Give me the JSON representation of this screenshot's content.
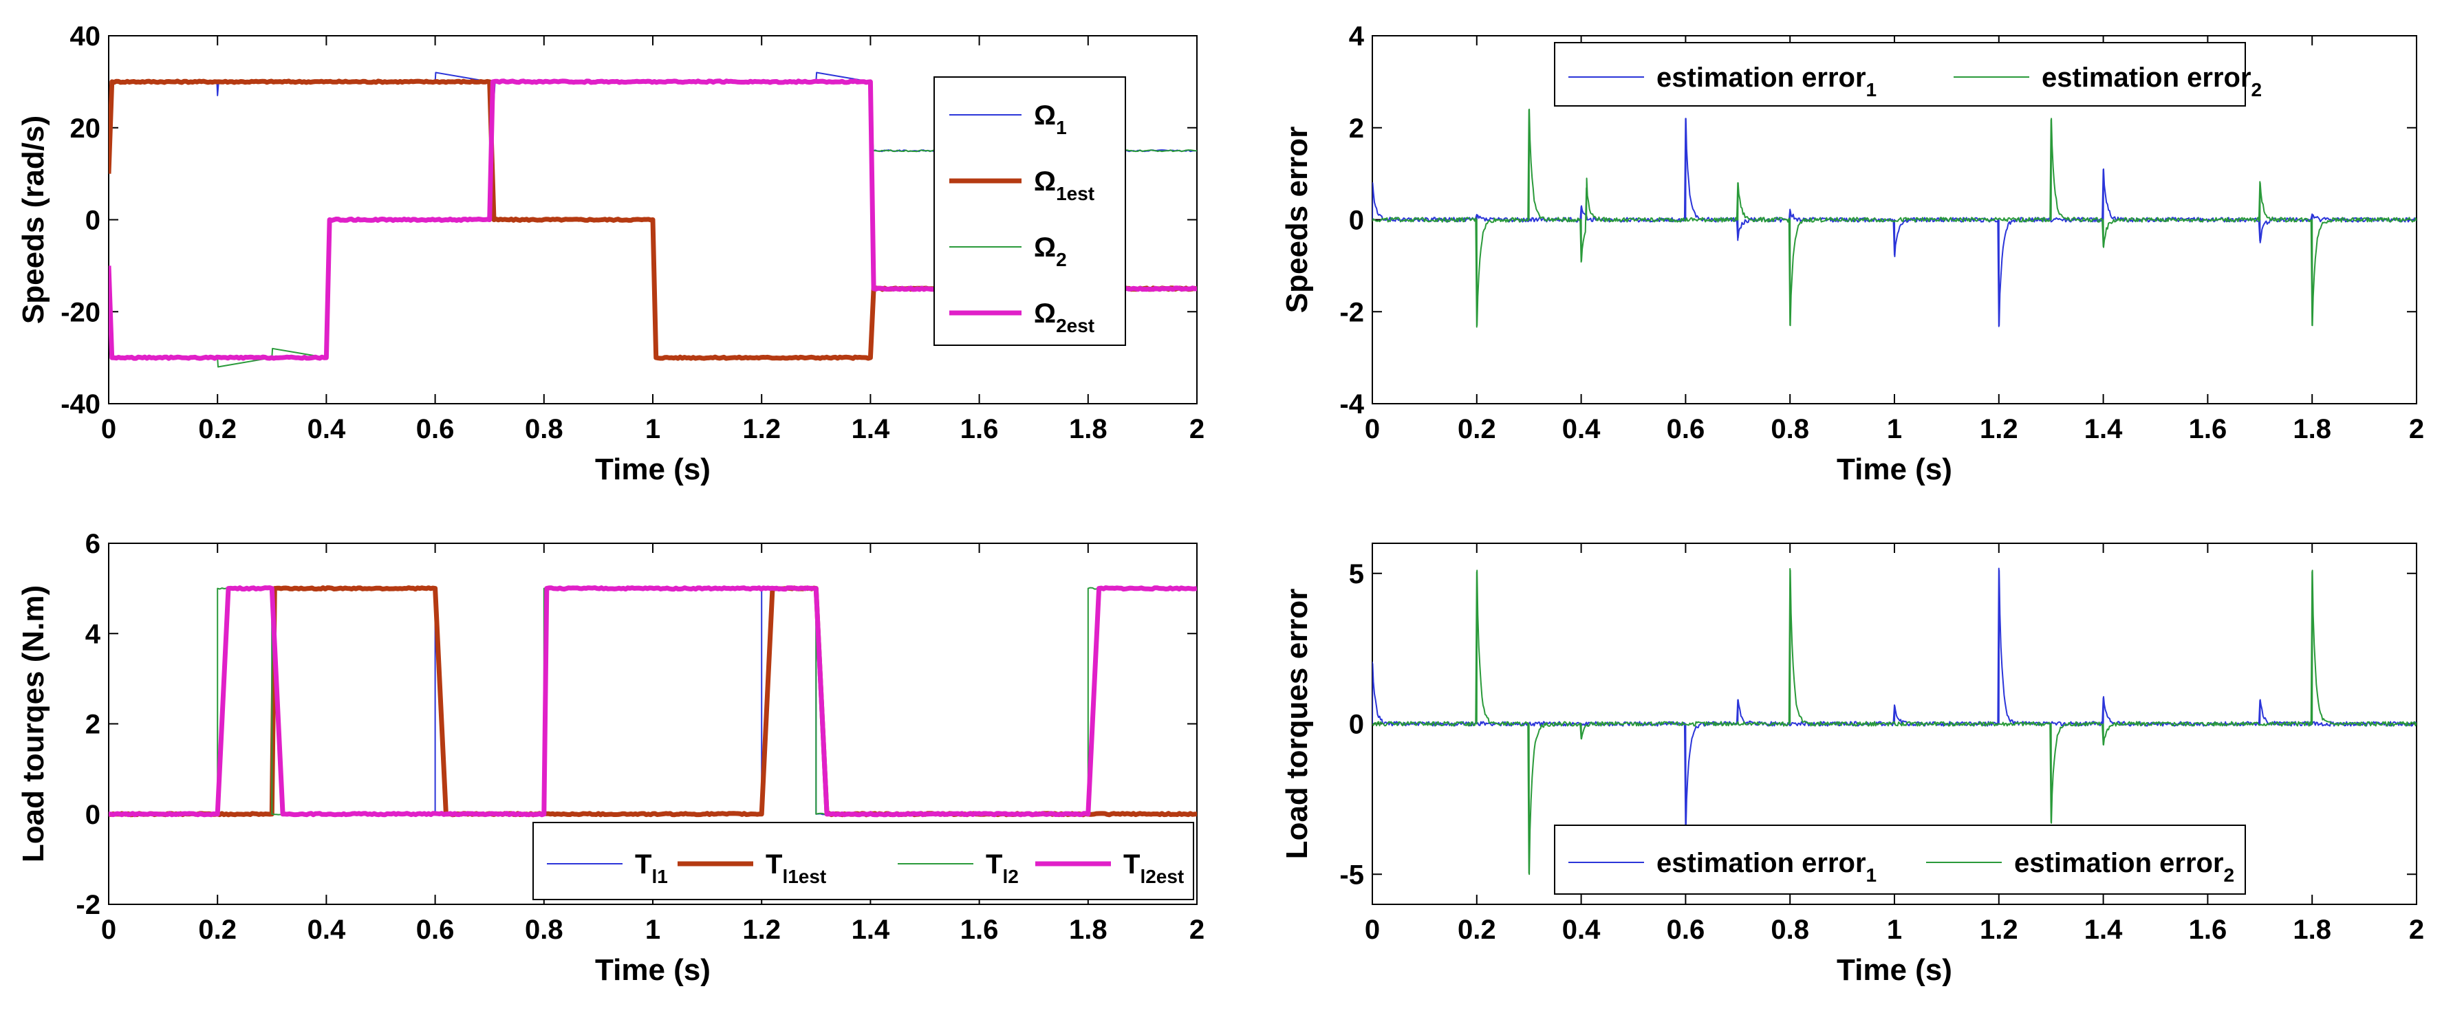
{
  "chart_data": [
    {
      "id": "speeds",
      "type": "line",
      "xlabel": "Time (s)",
      "ylabel": "Speeds (rad/s)",
      "xlim": [
        0,
        2
      ],
      "ylim": [
        -40,
        40
      ],
      "xticks": [
        "0",
        "0.2",
        "0.4",
        "0.6",
        "0.8",
        "1",
        "1.2",
        "1.4",
        "1.6",
        "1.8",
        "2"
      ],
      "yticks": [
        "-40",
        "-20",
        "0",
        "20",
        "40"
      ],
      "legend_position": "top-right",
      "legend_layout": "vertical",
      "series": [
        {
          "name": "Ω",
          "sub": "1",
          "color": "#2b35d9",
          "width": 2,
          "x": [
            0,
            0.005,
            0.199,
            0.2,
            0.202,
            0.6,
            0.601,
            0.7,
            0.705,
            0.71,
            1.3,
            1.301,
            1.4,
            1.405,
            2.0
          ],
          "y": [
            10,
            30,
            30,
            27,
            30,
            30,
            32,
            30,
            20,
            30,
            30,
            32,
            30,
            15,
            15
          ]
        },
        {
          "name": "Ω",
          "sub": "1est",
          "color": "#b53a12",
          "width": 7,
          "x": [
            0,
            0.006,
            0.7,
            0.708,
            1.0,
            1.006,
            1.4,
            1.406,
            2.0
          ],
          "y": [
            10,
            30,
            30,
            0,
            0,
            -30,
            -30,
            -15,
            -15
          ]
        },
        {
          "name": "Ω",
          "sub": "2",
          "color": "#2a9a3a",
          "width": 2,
          "x": [
            0,
            0.005,
            0.2,
            0.201,
            0.3,
            0.301,
            0.4,
            0.405,
            0.7,
            0.705,
            1.4,
            1.405,
            2.0
          ],
          "y": [
            -10,
            -30,
            -30,
            -32,
            -30,
            -28,
            -30,
            0,
            0,
            30,
            30,
            15,
            15
          ]
        },
        {
          "name": "Ω",
          "sub": "2est",
          "color": "#e020c8",
          "width": 7,
          "x": [
            0,
            0.006,
            0.4,
            0.406,
            0.7,
            0.706,
            1.4,
            1.406,
            2.0
          ],
          "y": [
            -10,
            -30,
            -30,
            0,
            0,
            30,
            30,
            -15,
            -15
          ]
        }
      ]
    },
    {
      "id": "speeds_error",
      "type": "line",
      "xlabel": "Time (s)",
      "ylabel": "Speeds error",
      "xlim": [
        0,
        2
      ],
      "ylim": [
        -4,
        4
      ],
      "xticks": [
        "0",
        "0.2",
        "0.4",
        "0.6",
        "0.8",
        "1",
        "1.2",
        "1.4",
        "1.6",
        "1.8",
        "2"
      ],
      "yticks": [
        "-4",
        "-2",
        "0",
        "2",
        "4"
      ],
      "legend_position": "top",
      "legend_layout": "horizontal",
      "series": [
        {
          "name": "estimation error",
          "sub": "1",
          "color": "#2b35d9",
          "width": 2,
          "spikes": [
            [
              0.0,
              0.8
            ],
            [
              0.2,
              0.1
            ],
            [
              0.4,
              0.3
            ],
            [
              0.6,
              2.2
            ],
            [
              0.7,
              -0.4
            ],
            [
              0.8,
              0.2
            ],
            [
              1.0,
              -0.8
            ],
            [
              1.2,
              -2.3
            ],
            [
              1.4,
              1.1
            ],
            [
              1.7,
              -0.5
            ],
            [
              1.8,
              0.1
            ]
          ]
        },
        {
          "name": "estimation error",
          "sub": "2",
          "color": "#2a9a3a",
          "width": 2,
          "spikes": [
            [
              0.2,
              -2.3
            ],
            [
              0.3,
              2.4
            ],
            [
              0.4,
              -0.9
            ],
            [
              0.41,
              0.9
            ],
            [
              0.7,
              0.8
            ],
            [
              0.8,
              -2.3
            ],
            [
              1.3,
              2.2
            ],
            [
              1.4,
              -0.6
            ],
            [
              1.7,
              0.8
            ],
            [
              1.8,
              -2.3
            ]
          ]
        }
      ]
    },
    {
      "id": "load_torques",
      "type": "line",
      "xlabel": "Time (s)",
      "ylabel": "Load tourqes (N.m)",
      "xlim": [
        0,
        2
      ],
      "ylim": [
        -2,
        6
      ],
      "xticks": [
        "0",
        "0.2",
        "0.4",
        "0.6",
        "0.8",
        "1",
        "1.2",
        "1.4",
        "1.6",
        "1.8",
        "2"
      ],
      "yticks": [
        "-2",
        "0",
        "2",
        "4",
        "6"
      ],
      "legend_position": "bottom-right",
      "legend_layout": "horizontal",
      "series": [
        {
          "name": "T",
          "sub": "l1",
          "color": "#2b35d9",
          "width": 2,
          "x": [
            0,
            0.3,
            0.3,
            0.6,
            0.6,
            1.2,
            1.2,
            1.3,
            1.3,
            2.0
          ],
          "y": [
            0,
            0,
            5,
            5,
            0,
            0,
            5,
            5,
            0,
            0
          ]
        },
        {
          "name": "T",
          "sub": "l1est",
          "color": "#b53a12",
          "width": 7,
          "x": [
            0,
            0.3,
            0.305,
            0.6,
            0.62,
            1.2,
            1.22,
            1.3,
            1.32,
            2.0
          ],
          "y": [
            0,
            0,
            5,
            5,
            0,
            0,
            5,
            5,
            0,
            0
          ]
        },
        {
          "name": "T",
          "sub": "l2",
          "color": "#2a9a3a",
          "width": 2,
          "x": [
            0,
            0.2,
            0.2,
            0.3,
            0.3,
            0.8,
            0.8,
            1.3,
            1.3,
            1.8,
            1.8,
            2.0
          ],
          "y": [
            0,
            0,
            5,
            5,
            0,
            0,
            5,
            5,
            0,
            0,
            5,
            5
          ]
        },
        {
          "name": "T",
          "sub": "l2est",
          "color": "#e020c8",
          "width": 7,
          "x": [
            0,
            0.2,
            0.22,
            0.3,
            0.32,
            0.8,
            0.805,
            1.3,
            1.32,
            1.8,
            1.82,
            2.0
          ],
          "y": [
            0,
            0,
            5,
            5,
            0,
            0,
            5,
            5,
            0,
            0,
            5,
            5
          ]
        }
      ]
    },
    {
      "id": "load_torques_error",
      "type": "line",
      "xlabel": "Time (s)",
      "ylabel": "Load torques  error",
      "xlim": [
        0,
        2
      ],
      "ylim": [
        -6,
        6
      ],
      "xticks": [
        "0",
        "0.2",
        "0.4",
        "0.6",
        "0.8",
        "1",
        "1.2",
        "1.4",
        "1.6",
        "1.8",
        "2"
      ],
      "yticks": [
        "-5",
        "0",
        "5"
      ],
      "ytick_values": [
        -5,
        0,
        5
      ],
      "legend_position": "bottom-right",
      "legend_layout": "horizontal",
      "series": [
        {
          "name": "estimation error",
          "sub": "1",
          "color": "#2b35d9",
          "width": 2,
          "spikes": [
            [
              0.0,
              2.0
            ],
            [
              0.6,
              -3.5
            ],
            [
              0.7,
              0.8
            ],
            [
              1.0,
              0.6
            ],
            [
              1.2,
              5.1
            ],
            [
              1.4,
              0.9
            ],
            [
              1.7,
              0.8
            ]
          ]
        },
        {
          "name": "estimation error",
          "sub": "2",
          "color": "#2a9a3a",
          "width": 2,
          "spikes": [
            [
              0.2,
              5.1
            ],
            [
              0.3,
              -5.0
            ],
            [
              0.4,
              -0.5
            ],
            [
              0.8,
              5.1
            ],
            [
              1.3,
              -3.3
            ],
            [
              1.4,
              -0.7
            ],
            [
              1.8,
              5.1
            ]
          ]
        }
      ]
    }
  ]
}
